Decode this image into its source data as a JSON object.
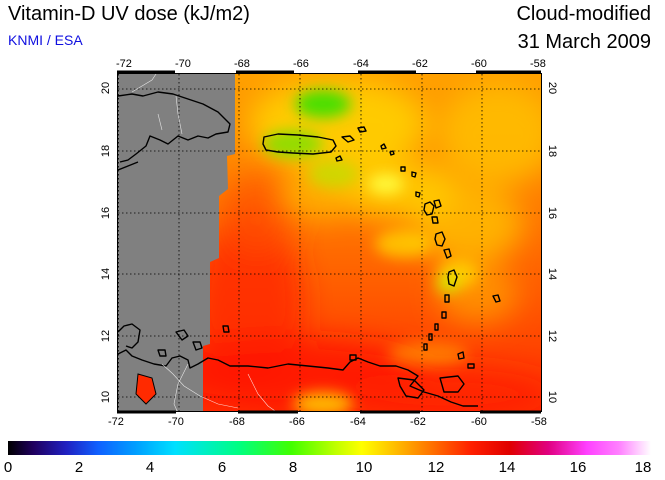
{
  "header": {
    "title": "Vitamin-D UV dose (kJ/m2)",
    "subtitle": "KNMI / ESA",
    "mode": "Cloud-modified",
    "date": "31 March 2009"
  },
  "map": {
    "lon_labels": [
      "-72",
      "-70",
      "-68",
      "-66",
      "-64",
      "-62",
      "-60",
      "-58"
    ],
    "lat_labels": [
      "20",
      "18",
      "16",
      "14",
      "12",
      "10"
    ],
    "colors": {
      "land_nodata": "#808080",
      "coast": "#000000",
      "grid": "#000000"
    }
  },
  "colorbar": {
    "ticks": [
      "0",
      "2",
      "4",
      "6",
      "8",
      "10",
      "12",
      "14",
      "16",
      "18"
    ]
  }
}
